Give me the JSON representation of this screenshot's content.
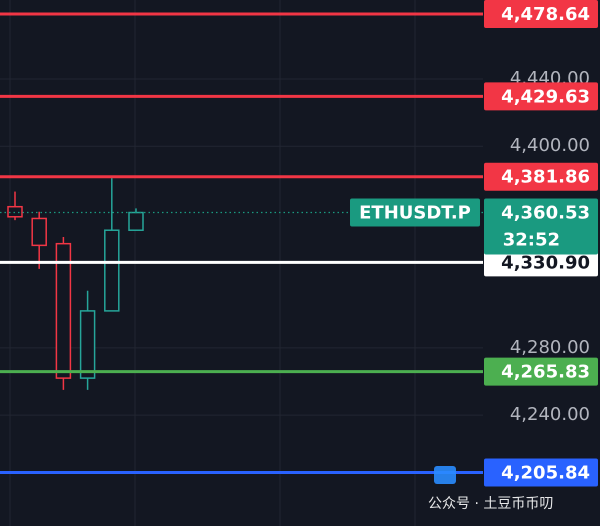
{
  "chart_data": {
    "type": "candlestick",
    "categories": [
      null,
      null,
      null,
      null,
      null,
      null
    ],
    "open": [
      4364,
      4357,
      4342,
      4262,
      4302,
      4350
    ],
    "high": [
      4373,
      4361,
      4346,
      4314,
      4381,
      4363
    ],
    "low": [
      4356,
      4327,
      4255,
      4255,
      4302,
      4350
    ],
    "close": [
      4358,
      4341,
      4262,
      4302,
      4350,
      4360.53
    ],
    "up_color": "#26a69a",
    "down_color": "#f23645",
    "ylim": [
      4174,
      4487
    ],
    "yticks": [
      {
        "value": 4240,
        "label": "4,240.00"
      },
      {
        "value": 4280,
        "label": "4,280.00"
      },
      {
        "value": 4400,
        "label": "4,400.00"
      },
      {
        "value": 4440,
        "label": "4,440.00"
      }
    ],
    "grid": true,
    "price_lines": [
      {
        "value": 4478.64,
        "label": "4,478.64",
        "color": "#f23645"
      },
      {
        "value": 4429.63,
        "label": "4,429.63",
        "color": "#f23645"
      },
      {
        "value": 4381.86,
        "label": "4,381.86",
        "color": "#f23645"
      },
      {
        "value": 4330.9,
        "label": "4,330.90",
        "color": "#ffffff"
      },
      {
        "value": 4265.83,
        "label": "4,265.83",
        "color": "#4caf50"
      },
      {
        "value": 4205.84,
        "label": "4,205.84",
        "color": "#2962ff"
      }
    ],
    "last_price": {
      "value": 4360.53,
      "label": "4,360.53",
      "symbol": "ETHUSDT.P",
      "countdown": "32:52",
      "color": "#1a9a80"
    },
    "watermark": "公众号 · 土豆币币叨"
  }
}
